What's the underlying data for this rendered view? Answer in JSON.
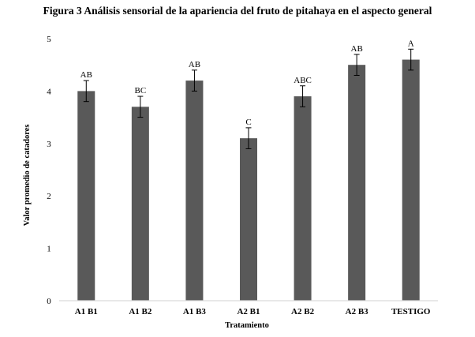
{
  "figure_title": "Figura 3 Análisis sensorial de la apariencia del fruto de pitahaya en el aspecto general",
  "chart_data": {
    "type": "bar",
    "title": "Figura 3 Análisis sensorial de la apariencia del fruto de pitahaya en el aspecto general",
    "xlabel": "Tratamiento",
    "ylabel": "Valor promedio de catadores",
    "categories": [
      "A1 B1",
      "A1 B2",
      "A1 B3",
      "A2 B1",
      "A2 B2",
      "A2 B3",
      "TESTIGO"
    ],
    "values": [
      4.0,
      3.7,
      4.2,
      3.1,
      3.9,
      4.5,
      4.6
    ],
    "errors": [
      0.2,
      0.2,
      0.2,
      0.2,
      0.2,
      0.2,
      0.2
    ],
    "significance_labels": [
      "AB",
      "BC",
      "AB",
      "C",
      "ABC",
      "AB",
      "A"
    ],
    "ylim": [
      0,
      5
    ],
    "yticks": [
      0,
      1,
      2,
      3,
      4,
      5
    ],
    "grid": false,
    "legend": "none",
    "bar_color": "#595959",
    "axis_color": "#d9d9d9"
  }
}
